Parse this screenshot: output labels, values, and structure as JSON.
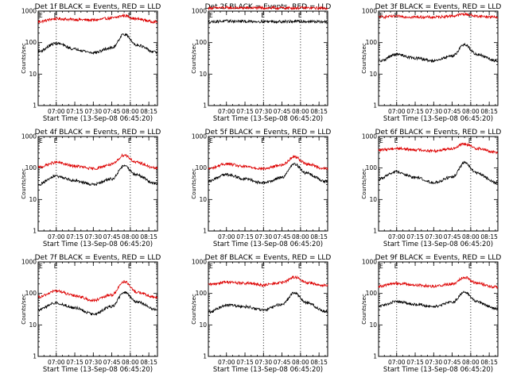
{
  "figure": {
    "background": "#ffffff",
    "colors": {
      "events": "#000000",
      "lld": "#dd0000",
      "axes": "#000000"
    }
  },
  "chart_data": [
    {
      "type": "line",
      "title": "Det 1f BLACK = Events, RED = LLD",
      "ylabel": "Counts/sec",
      "xlabel": "Start Time (13-Sep-08 06:45:20)",
      "x_ticks": [
        "07:00",
        "07:15",
        "07:30",
        "07:45",
        "08:00",
        "08:15"
      ],
      "y_ticks": [
        "1",
        "10",
        "100",
        "1000"
      ],
      "y_scale": "log",
      "ylim": [
        1,
        1000
      ],
      "xlim": [
        "06:45:20",
        "08:22:00"
      ],
      "dotted_markers": [
        "07:00",
        "08:00"
      ],
      "marker_label": "E",
      "series": [
        {
          "color": "#dd0000",
          "times": [
            "06:45",
            "07:00",
            "07:15",
            "07:30",
            "07:45",
            "07:55",
            "08:05",
            "08:20"
          ],
          "values": [
            460,
            570,
            540,
            520,
            600,
            720,
            560,
            460
          ]
        },
        {
          "color": "#000000",
          "times": [
            "06:45",
            "07:00",
            "07:15",
            "07:30",
            "07:45",
            "07:55",
            "08:05",
            "08:20"
          ],
          "values": [
            52,
            95,
            62,
            48,
            68,
            185,
            85,
            50
          ]
        }
      ]
    },
    {
      "type": "line",
      "title": "Det 2f BLACK = Events, RED = LLD",
      "ylabel": "Counts/sec",
      "xlabel": "Start Time (13-Sep-08 06:45:20)",
      "x_ticks": [
        "07:00",
        "07:15",
        "07:30",
        "07:45",
        "08:00",
        "08:15"
      ],
      "y_ticks": [
        "1",
        "10",
        "100",
        "1000"
      ],
      "y_scale": "log",
      "ylim": [
        1,
        1000
      ],
      "xlim": [
        "06:45:20",
        "08:22:00"
      ],
      "dotted_markers": [
        "07:30",
        "08:00"
      ],
      "marker_label": "E",
      "series": [
        {
          "color": "#dd0000",
          "times": [
            "06:45",
            "07:00",
            "07:15",
            "07:30",
            "07:45",
            "08:00",
            "08:20"
          ],
          "values": [
            1250,
            1270,
            1260,
            1260,
            1250,
            1260,
            1240
          ]
        },
        {
          "color": "#000000",
          "times": [
            "06:45",
            "07:00",
            "07:15",
            "07:30",
            "07:45",
            "08:00",
            "08:20"
          ],
          "values": [
            460,
            480,
            470,
            470,
            465,
            470,
            455
          ]
        }
      ]
    },
    {
      "type": "line",
      "title": "Det 3f BLACK = Events, RED = LLD",
      "ylabel": "Counts/sec",
      "xlabel": "Start Time (13-Sep-08 06:45:20)",
      "x_ticks": [
        "07:00",
        "07:15",
        "07:30",
        "07:45",
        "08:00",
        "08:15"
      ],
      "y_ticks": [
        "1",
        "10",
        "100",
        "1000"
      ],
      "y_scale": "log",
      "ylim": [
        1,
        1000
      ],
      "xlim": [
        "06:45:20",
        "08:22:00"
      ],
      "dotted_markers": [
        "07:00",
        "08:00"
      ],
      "marker_label": "E",
      "series": [
        {
          "color": "#dd0000",
          "times": [
            "06:45",
            "07:00",
            "07:15",
            "07:30",
            "07:45",
            "07:55",
            "08:05",
            "08:20"
          ],
          "values": [
            650,
            680,
            650,
            640,
            700,
            800,
            690,
            650
          ]
        },
        {
          "color": "#000000",
          "times": [
            "06:45",
            "07:00",
            "07:15",
            "07:30",
            "07:45",
            "07:55",
            "08:05",
            "08:20"
          ],
          "values": [
            25,
            42,
            32,
            26,
            38,
            85,
            42,
            27
          ]
        }
      ]
    },
    {
      "type": "line",
      "title": "Det 4f BLACK = Events, RED = LLD",
      "ylabel": "Counts/sec",
      "xlabel": "Start Time (13-Sep-08 06:45:20)",
      "x_ticks": [
        "07:00",
        "07:15",
        "07:30",
        "07:45",
        "08:00",
        "08:15"
      ],
      "y_ticks": [
        "1",
        "10",
        "100",
        "1000"
      ],
      "y_scale": "log",
      "ylim": [
        1,
        1000
      ],
      "xlim": [
        "06:45:20",
        "08:22:00"
      ],
      "dotted_markers": [
        "07:00",
        "08:00"
      ],
      "marker_label": "E",
      "series": [
        {
          "color": "#dd0000",
          "times": [
            "06:45",
            "07:00",
            "07:15",
            "07:30",
            "07:45",
            "07:55",
            "08:05",
            "08:20"
          ],
          "values": [
            105,
            150,
            115,
            95,
            130,
            260,
            150,
            100
          ]
        },
        {
          "color": "#000000",
          "times": [
            "06:45",
            "07:00",
            "07:15",
            "07:30",
            "07:45",
            "07:55",
            "08:05",
            "08:20"
          ],
          "values": [
            30,
            55,
            40,
            30,
            45,
            115,
            60,
            32
          ]
        }
      ]
    },
    {
      "type": "line",
      "title": "Det 5f BLACK = Events, RED = LLD",
      "ylabel": "Counts/sec",
      "xlabel": "Start Time (13-Sep-08 06:45:20)",
      "x_ticks": [
        "07:00",
        "07:15",
        "07:30",
        "07:45",
        "08:00",
        "08:15"
      ],
      "y_ticks": [
        "1",
        "10",
        "100",
        "1000"
      ],
      "y_scale": "log",
      "ylim": [
        1,
        1000
      ],
      "xlim": [
        "06:45:20",
        "08:22:00"
      ],
      "dotted_markers": [
        "07:30",
        "08:00"
      ],
      "marker_label": "E",
      "series": [
        {
          "color": "#dd0000",
          "times": [
            "06:45",
            "07:00",
            "07:15",
            "07:30",
            "07:45",
            "07:55",
            "08:05",
            "08:20"
          ],
          "values": [
            95,
            135,
            110,
            95,
            125,
            230,
            135,
            95
          ]
        },
        {
          "color": "#000000",
          "times": [
            "06:45",
            "07:00",
            "07:15",
            "07:30",
            "07:45",
            "07:55",
            "08:05",
            "08:20"
          ],
          "values": [
            38,
            62,
            45,
            33,
            50,
            135,
            68,
            38
          ]
        }
      ]
    },
    {
      "type": "line",
      "title": "Det 6f BLACK = Events, RED = LLD",
      "ylabel": "Counts/sec",
      "xlabel": "Start Time (13-Sep-08 06:45:20)",
      "x_ticks": [
        "07:00",
        "07:15",
        "07:30",
        "07:45",
        "08:00",
        "08:15"
      ],
      "y_ticks": [
        "1",
        "10",
        "100",
        "1000"
      ],
      "y_scale": "log",
      "ylim": [
        1,
        1000
      ],
      "xlim": [
        "06:45:20",
        "08:22:00"
      ],
      "dotted_markers": [
        "07:00",
        "08:00"
      ],
      "marker_label": "E",
      "series": [
        {
          "color": "#dd0000",
          "times": [
            "06:45",
            "07:00",
            "07:15",
            "07:30",
            "07:45",
            "07:55",
            "08:05",
            "08:20"
          ],
          "values": [
            370,
            420,
            380,
            350,
            420,
            580,
            420,
            320
          ]
        },
        {
          "color": "#000000",
          "times": [
            "06:45",
            "07:00",
            "07:15",
            "07:30",
            "07:45",
            "07:55",
            "08:05",
            "08:20"
          ],
          "values": [
            45,
            75,
            50,
            35,
            52,
            145,
            70,
            35
          ]
        }
      ]
    },
    {
      "type": "line",
      "title": "Det 7f BLACK = Events, RED = LLD",
      "ylabel": "Counts/sec",
      "xlabel": "Start Time (13-Sep-08 06:45:20)",
      "x_ticks": [
        "07:00",
        "07:15",
        "07:30",
        "07:45",
        "08:00",
        "08:15"
      ],
      "y_ticks": [
        "1",
        "10",
        "100",
        "1000"
      ],
      "y_scale": "log",
      "ylim": [
        1,
        1000
      ],
      "xlim": [
        "06:45:20",
        "08:22:00"
      ],
      "dotted_markers": [
        "07:00",
        "08:00"
      ],
      "marker_label": "E",
      "series": [
        {
          "color": "#dd0000",
          "times": [
            "06:45",
            "07:00",
            "07:15",
            "07:30",
            "07:45",
            "07:55",
            "08:05",
            "08:20"
          ],
          "values": [
            75,
            120,
            85,
            60,
            90,
            240,
            110,
            75
          ]
        },
        {
          "color": "#000000",
          "times": [
            "06:45",
            "07:00",
            "07:15",
            "07:30",
            "07:45",
            "07:55",
            "08:05",
            "08:20"
          ],
          "values": [
            30,
            50,
            35,
            22,
            38,
            110,
            55,
            32
          ]
        }
      ]
    },
    {
      "type": "line",
      "title": "Det 8f BLACK = Events, RED = LLD",
      "ylabel": "Counts/sec",
      "xlabel": "Start Time (13-Sep-08 06:45:20)",
      "x_ticks": [
        "07:00",
        "07:15",
        "07:30",
        "07:45",
        "08:00",
        "08:15"
      ],
      "y_ticks": [
        "1",
        "10",
        "100",
        "1000"
      ],
      "y_scale": "log",
      "ylim": [
        1,
        1000
      ],
      "xlim": [
        "06:45:20",
        "08:22:00"
      ],
      "dotted_markers": [
        "07:30",
        "08:00"
      ],
      "marker_label": "E",
      "series": [
        {
          "color": "#dd0000",
          "times": [
            "06:45",
            "07:00",
            "07:15",
            "07:30",
            "07:45",
            "07:55",
            "08:05",
            "08:20"
          ],
          "values": [
            190,
            230,
            210,
            185,
            220,
            330,
            220,
            180
          ]
        },
        {
          "color": "#000000",
          "times": [
            "06:45",
            "07:00",
            "07:15",
            "07:30",
            "07:45",
            "07:55",
            "08:05",
            "08:20"
          ],
          "values": [
            25,
            42,
            38,
            30,
            45,
            105,
            50,
            27
          ]
        }
      ]
    },
    {
      "type": "line",
      "title": "Det 9f BLACK = Events, RED = LLD",
      "ylabel": "Counts/sec",
      "xlabel": "Start Time (13-Sep-08 06:45:20)",
      "x_ticks": [
        "07:00",
        "07:15",
        "07:30",
        "07:45",
        "08:00",
        "08:15"
      ],
      "y_ticks": [
        "1",
        "10",
        "100",
        "1000"
      ],
      "y_scale": "log",
      "ylim": [
        1,
        1000
      ],
      "xlim": [
        "06:45:20",
        "08:22:00"
      ],
      "dotted_markers": [
        "07:00",
        "08:00"
      ],
      "marker_label": "E",
      "series": [
        {
          "color": "#dd0000",
          "times": [
            "06:45",
            "07:00",
            "07:15",
            "07:30",
            "07:45",
            "07:55",
            "08:05",
            "08:20"
          ],
          "values": [
            170,
            210,
            185,
            170,
            200,
            330,
            210,
            160
          ]
        },
        {
          "color": "#000000",
          "times": [
            "06:45",
            "07:00",
            "07:15",
            "07:30",
            "07:45",
            "07:55",
            "08:05",
            "08:20"
          ],
          "values": [
            40,
            55,
            45,
            38,
            52,
            110,
            55,
            33
          ]
        }
      ]
    }
  ]
}
